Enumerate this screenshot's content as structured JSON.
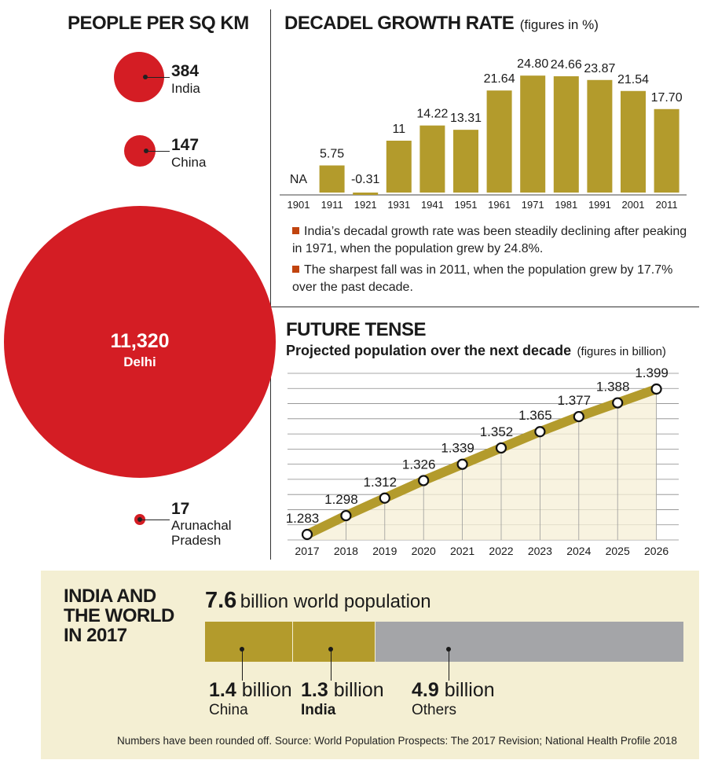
{
  "density": {
    "title": "PEOPLE PER SQ KM",
    "items": [
      {
        "value": "384",
        "name": "India"
      },
      {
        "value": "147",
        "name": "China"
      },
      {
        "value": "11,320",
        "name": "Delhi"
      },
      {
        "value": "17",
        "name_line1": "Arunachal",
        "name_line2": "Pradesh"
      }
    ]
  },
  "growth": {
    "title": "DECADEL GROWTH RATE",
    "units": "(figures in %)",
    "notes": [
      "India’s decadal growth rate was been steadily declining after peaking in 1971, when the population grew by 24.8%.",
      "The sharpest fall was in 2011, when the population grew by 17.7% over the past decade."
    ]
  },
  "future": {
    "title": "FUTURE TENSE",
    "subtitle": "Projected population over the next decade",
    "units": "(figures in billion)"
  },
  "world": {
    "title_line1": "INDIA AND",
    "title_line2": "THE WORLD",
    "title_line3": "IN 2017",
    "total_value": "7.6",
    "total_label": "billion world population",
    "segments": [
      {
        "value": "1.4",
        "unit": "billion",
        "name": "China",
        "color": "#b39b2c"
      },
      {
        "value": "1.3",
        "unit": "billion",
        "name": "India",
        "color": "#b39b2c"
      },
      {
        "value": "4.9",
        "unit": "billion",
        "name": "Others",
        "color": "#a4a5a8"
      }
    ],
    "source": "Numbers have been rounded off. Source: World Population Prospects: The 2017 Revision; National Health Profile 2018"
  },
  "colors": {
    "red": "#d41d24",
    "olive": "#b39b2c",
    "grey": "#a4a5a8",
    "cream": "#f4efd3",
    "bullet": "#c1440e"
  },
  "chart_data": [
    {
      "type": "bar",
      "title": "DECADEL GROWTH RATE",
      "subtitle": "(figures in %)",
      "categories": [
        "1901",
        "1911",
        "1921",
        "1931",
        "1941",
        "1951",
        "1961",
        "1971",
        "1981",
        "1991",
        "2001",
        "2011"
      ],
      "values": [
        null,
        5.75,
        -0.31,
        11,
        14.22,
        13.31,
        21.64,
        24.8,
        24.66,
        23.87,
        21.54,
        17.7
      ],
      "labels": [
        "NA",
        "5.75",
        "-0.31",
        "11",
        "14.22",
        "13.31",
        "21.64",
        "24.80",
        "24.66",
        "23.87",
        "21.54",
        "17.70"
      ],
      "ylim": [
        -0.31,
        24.8
      ]
    },
    {
      "type": "line",
      "title": "FUTURE TENSE",
      "subtitle": "Projected population over the next decade",
      "units": "(figures in billion)",
      "x": [
        "2017",
        "2018",
        "2019",
        "2020",
        "2021",
        "2022",
        "2023",
        "2024",
        "2025",
        "2026"
      ],
      "y": [
        1.283,
        1.298,
        1.312,
        1.326,
        1.339,
        1.352,
        1.365,
        1.377,
        1.388,
        1.399
      ],
      "labels": [
        "1.283",
        "1.298",
        "1.312",
        "1.326",
        "1.339",
        "1.352",
        "1.365",
        "1.377",
        "1.388",
        "1.399"
      ],
      "grid": true
    }
  ]
}
